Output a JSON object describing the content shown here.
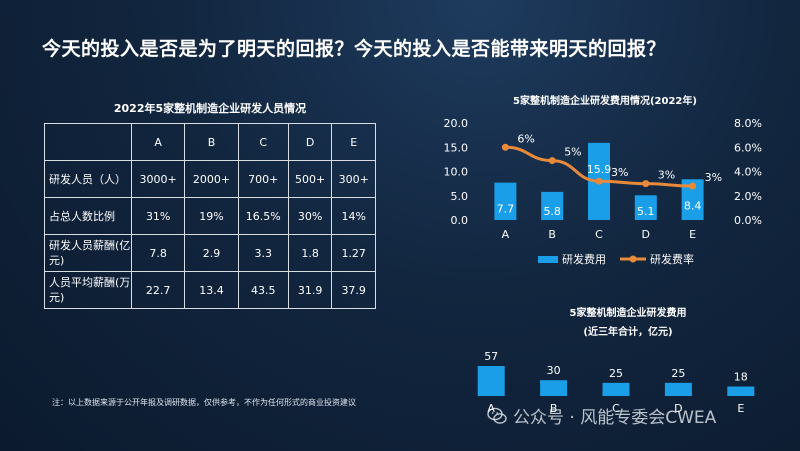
{
  "headline": "今天的投入是否是为了明天的回报？今天的投入是否能带来明天的回报？",
  "table": {
    "title": "2022年5家整机制造企业研发人员情况",
    "columns": [
      "A",
      "B",
      "C",
      "D",
      "E"
    ],
    "rows": [
      {
        "label": "研发人员（人）",
        "values": [
          "3000+",
          "2000+",
          "700+",
          "500+",
          "300+"
        ]
      },
      {
        "label": "占总人数比例",
        "values": [
          "31%",
          "19%",
          "16.5%",
          "30%",
          "14%"
        ]
      },
      {
        "label": "研发人员薪酬(亿元)",
        "values": [
          "7.8",
          "2.9",
          "3.3",
          "1.8",
          "1.27"
        ]
      },
      {
        "label": "人员平均薪酬(万元)",
        "values": [
          "22.7",
          "13.4",
          "43.5",
          "31.9",
          "37.9"
        ]
      }
    ]
  },
  "note": "注：以上数据来源于公开年报及调研数据，仅供参考，不作为任何形式的商业投资建议",
  "watermark": "公众号 · 风能专委会CWEA",
  "chart_data": [
    {
      "type": "bar",
      "title": "5家整机制造企业研发费用情况(2022年)",
      "categories": [
        "A",
        "B",
        "C",
        "D",
        "E"
      ],
      "series": [
        {
          "name": "研发费用",
          "type": "bar",
          "axis": "left",
          "values": [
            7.7,
            5.8,
            15.9,
            5.1,
            8.4
          ],
          "value_labels": [
            "7.7",
            "5.8",
            "15.9",
            "5.1",
            "8.4"
          ],
          "color": "#1a9ee8"
        },
        {
          "name": "研发费率",
          "type": "line",
          "axis": "right",
          "values": [
            6,
            4.9,
            3.2,
            3.0,
            2.8
          ],
          "value_labels": [
            "6%",
            "5%",
            "3%",
            "3%",
            "3%"
          ],
          "color": "#e98a3a"
        }
      ],
      "ylim": [
        0,
        20
      ],
      "yticks": [
        "0.0",
        "5.0",
        "10.0",
        "15.0",
        "20.0"
      ],
      "y2lim": [
        0,
        8
      ],
      "y2ticks": [
        "0.0%",
        "2.0%",
        "4.0%",
        "6.0%",
        "8.0%"
      ],
      "legend": "bottom"
    },
    {
      "type": "bar",
      "title": "5家整机制造企业研发费用",
      "subtitle": "(近三年合计，亿元)",
      "categories": [
        "A",
        "B",
        "C",
        "D",
        "E"
      ],
      "values": [
        57,
        30,
        25,
        25,
        18
      ],
      "color": "#1a9ee8"
    }
  ]
}
